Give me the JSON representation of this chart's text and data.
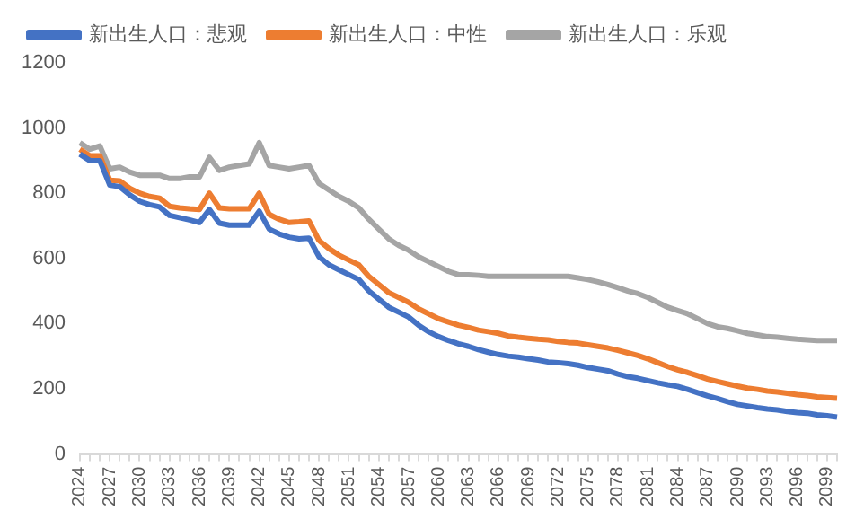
{
  "chart_data": {
    "type": "line",
    "categories": [
      "2024",
      null,
      null,
      "2027",
      null,
      null,
      "2030",
      null,
      null,
      "2033",
      null,
      null,
      "2036",
      null,
      null,
      "2039",
      null,
      null,
      "2042",
      null,
      null,
      "2045",
      null,
      null,
      "2048",
      null,
      null,
      "2051",
      null,
      null,
      "2054",
      null,
      null,
      "2057",
      null,
      null,
      "2060",
      null,
      null,
      "2063",
      null,
      null,
      "2066",
      null,
      null,
      "2069",
      null,
      null,
      "2072",
      null,
      null,
      "2075",
      null,
      null,
      "2078",
      null,
      null,
      "2081",
      null,
      null,
      "2084",
      null,
      null,
      "2087",
      null,
      null,
      "2090",
      null,
      null,
      "2093",
      null,
      null,
      "2096",
      null,
      null,
      "2099",
      null
    ],
    "series": [
      {
        "name": "新出生人口：悲观",
        "color": "#4472c4",
        "values": [
          920,
          900,
          900,
          825,
          820,
          795,
          775,
          765,
          758,
          732,
          725,
          718,
          710,
          750,
          708,
          702,
          702,
          702,
          745,
          690,
          675,
          665,
          660,
          662,
          605,
          580,
          565,
          550,
          535,
          500,
          475,
          450,
          435,
          420,
          395,
          375,
          360,
          348,
          338,
          330,
          320,
          312,
          305,
          300,
          297,
          292,
          288,
          282,
          280,
          277,
          272,
          265,
          260,
          255,
          245,
          237,
          232,
          225,
          218,
          212,
          207,
          198,
          188,
          178,
          170,
          160,
          152,
          147,
          142,
          138,
          135,
          130,
          127,
          125,
          120,
          117,
          113
        ]
      },
      {
        "name": "新出生人口：中性",
        "color": "#ed7d31",
        "values": [
          935,
          915,
          915,
          840,
          838,
          815,
          800,
          790,
          785,
          760,
          755,
          752,
          750,
          800,
          755,
          752,
          752,
          752,
          800,
          735,
          720,
          710,
          712,
          715,
          655,
          630,
          610,
          595,
          580,
          545,
          520,
          495,
          480,
          465,
          445,
          430,
          415,
          405,
          395,
          388,
          380,
          375,
          370,
          362,
          358,
          355,
          352,
          350,
          345,
          342,
          340,
          335,
          330,
          325,
          318,
          310,
          302,
          292,
          280,
          268,
          258,
          250,
          240,
          230,
          222,
          215,
          208,
          202,
          198,
          193,
          190,
          186,
          182,
          179,
          175,
          173,
          171
        ]
      },
      {
        "name": "新出生人口：乐观",
        "color": "#a5a5a5",
        "values": [
          955,
          935,
          945,
          875,
          880,
          865,
          855,
          855,
          855,
          845,
          845,
          850,
          850,
          910,
          870,
          880,
          885,
          890,
          955,
          885,
          880,
          875,
          880,
          885,
          830,
          810,
          790,
          775,
          755,
          720,
          690,
          660,
          640,
          625,
          605,
          590,
          575,
          560,
          550,
          550,
          548,
          545,
          545,
          545,
          545,
          545,
          545,
          545,
          545,
          545,
          540,
          535,
          528,
          520,
          510,
          500,
          492,
          480,
          465,
          450,
          440,
          430,
          415,
          400,
          390,
          385,
          378,
          370,
          365,
          360,
          358,
          355,
          352,
          350,
          348,
          348,
          348
        ]
      }
    ],
    "ylim": [
      0,
      1200
    ],
    "yticks": [
      0,
      200,
      400,
      600,
      800,
      1000,
      1200
    ],
    "grid": false,
    "legend": "top"
  }
}
